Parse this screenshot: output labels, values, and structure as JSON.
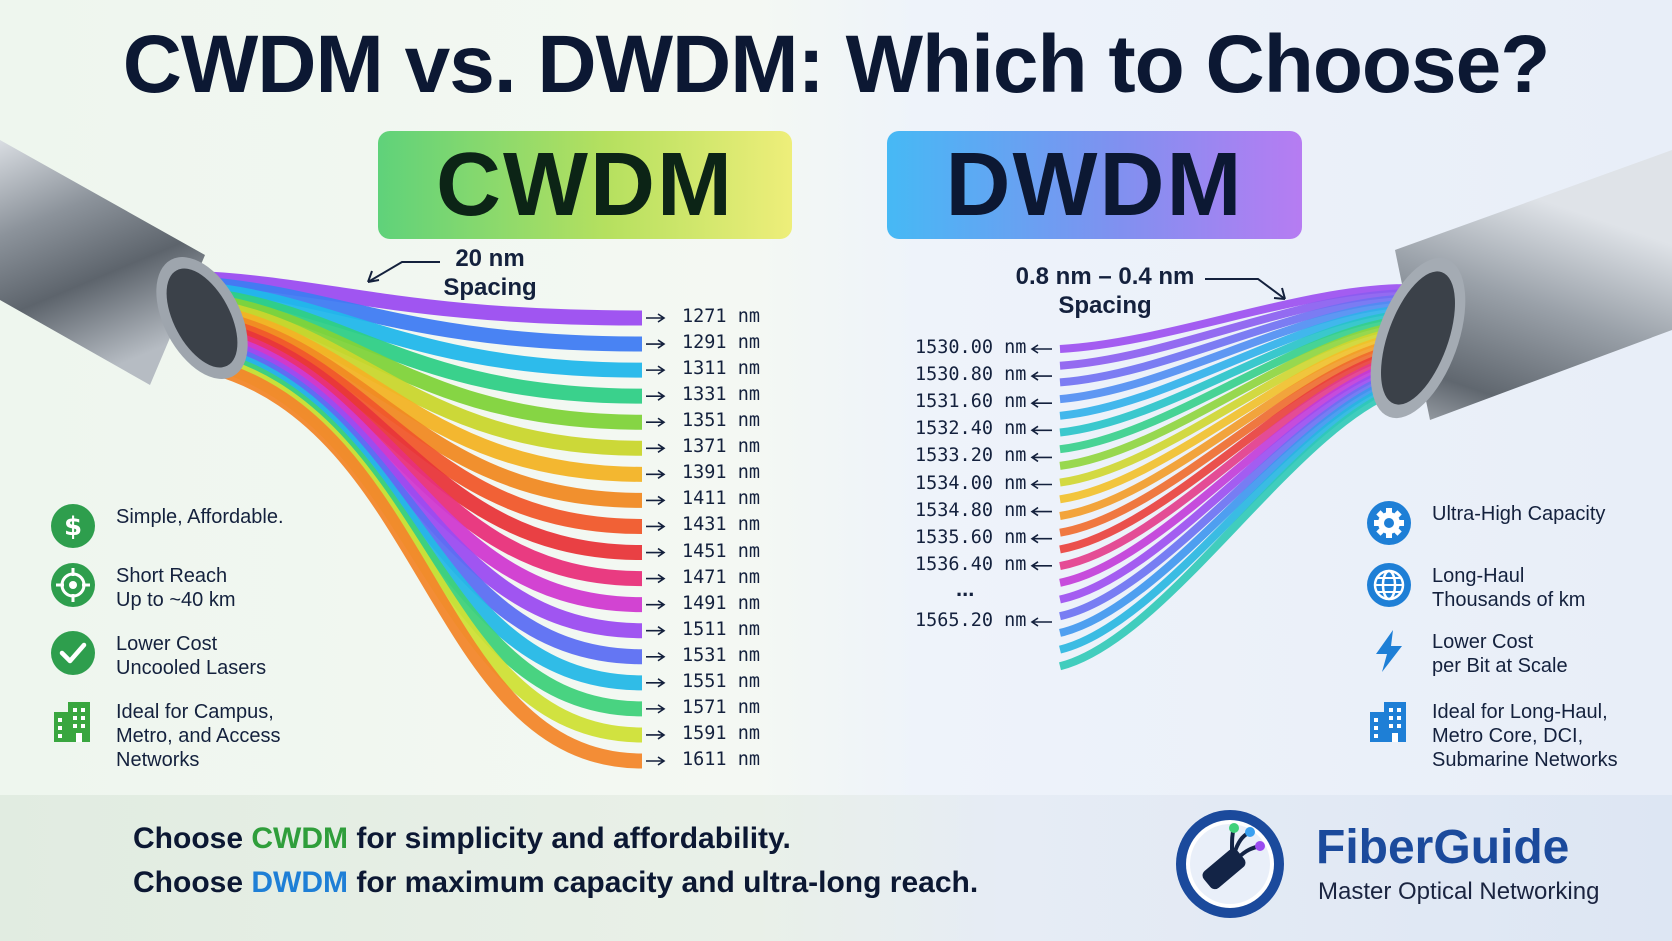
{
  "title": "CWDM vs. DWDM: Which to Choose?",
  "cwdm": {
    "label": "CWDM",
    "spacing_value": "20 nm",
    "spacing_word": "Spacing",
    "wavelengths": [
      "1271 nm",
      "1291 nm",
      "1311 nm",
      "1331 nm",
      "1351 nm",
      "1371 nm",
      "1391 nm",
      "1411 nm",
      "1431 nm",
      "1451 nm",
      "1471 nm",
      "1491 nm",
      "1511 nm",
      "1531 nm",
      "1551 nm",
      "1571 nm",
      "1591 nm",
      "1611 nm"
    ],
    "channel_colors": [
      "#9b4cf0",
      "#3f7cf2",
      "#22b7ea",
      "#2fcf86",
      "#7fd33a",
      "#c9d62d",
      "#f2b325",
      "#f08a23",
      "#f0592b",
      "#e8363a",
      "#e8307a",
      "#d03ad0",
      "#9b4cf0",
      "#5c6ff2",
      "#25b8e6",
      "#3fd17a",
      "#cfe036",
      "#f2872b"
    ],
    "features": [
      {
        "icon": "dollar-icon",
        "color": "#2e9e4d",
        "lines": [
          "Simple, Affordable."
        ]
      },
      {
        "icon": "target-icon",
        "color": "#2e9e4d",
        "lines": [
          "Short Reach",
          "Up to ~40 km"
        ]
      },
      {
        "icon": "check-icon",
        "color": "#2e9e4d",
        "lines": [
          "Lower Cost",
          "Uncooled Lasers"
        ]
      },
      {
        "icon": "building-icon",
        "color": "#39a63f",
        "lines": [
          "Ideal for Campus,",
          "Metro, and Access",
          "Networks"
        ]
      }
    ]
  },
  "dwdm": {
    "label": "DWDM",
    "spacing_value": "0.8 nm – 0.4 nm",
    "spacing_word": "Spacing",
    "wavelengths": [
      "1530.00 nm",
      "1530.80 nm",
      "1531.60 nm",
      "1532.40 nm",
      "1533.20 nm",
      "1534.00 nm",
      "1534.80 nm",
      "1535.60 nm",
      "1536.40 nm"
    ],
    "ellipsis": "...",
    "last_wavelength": "1565.20 nm",
    "channel_colors": [
      "#9b4cf0",
      "#8a5cf0",
      "#6f6ff2",
      "#4f8df2",
      "#2fb0ea",
      "#27c3c8",
      "#35cf8a",
      "#8ed53c",
      "#cfd62d",
      "#f2c028",
      "#f39b27",
      "#f06a2b",
      "#ea3e3a",
      "#e33a8a",
      "#c23ad8",
      "#9b4cf0",
      "#6a70f2",
      "#3d96ee",
      "#27b6e0",
      "#2fc9b6"
    ],
    "features": [
      {
        "icon": "gear-icon",
        "color": "#1e7fd6",
        "lines": [
          "Ultra-High Capacity"
        ]
      },
      {
        "icon": "globe-icon",
        "color": "#1e7fd6",
        "lines": [
          "Long-Haul",
          "Thousands of km"
        ]
      },
      {
        "icon": "lightning-icon",
        "color": "#1e7fd6",
        "lines": [
          "Lower Cost",
          "per Bit at Scale"
        ]
      },
      {
        "icon": "building-icon",
        "color": "#1e7fd6",
        "lines": [
          "Ideal for Long-Haul,",
          "Metro Core, DCI,",
          "Submarine Networks"
        ]
      }
    ]
  },
  "bottom": {
    "line1_prefix": "Choose ",
    "line1_keyword": "CWDM",
    "line1_suffix": " for simplicity and affordability.",
    "line2_prefix": "Choose ",
    "line2_keyword": "DWDM",
    "line2_suffix": " for maximum capacity and ultra-long reach."
  },
  "brand": {
    "name": "FiberGuide",
    "tagline": "Master Optical Networking"
  },
  "colors": {
    "cwdm_accent": "#2f9e3b",
    "dwdm_accent": "#1e7fd6",
    "brand": "#1b4a9c"
  }
}
